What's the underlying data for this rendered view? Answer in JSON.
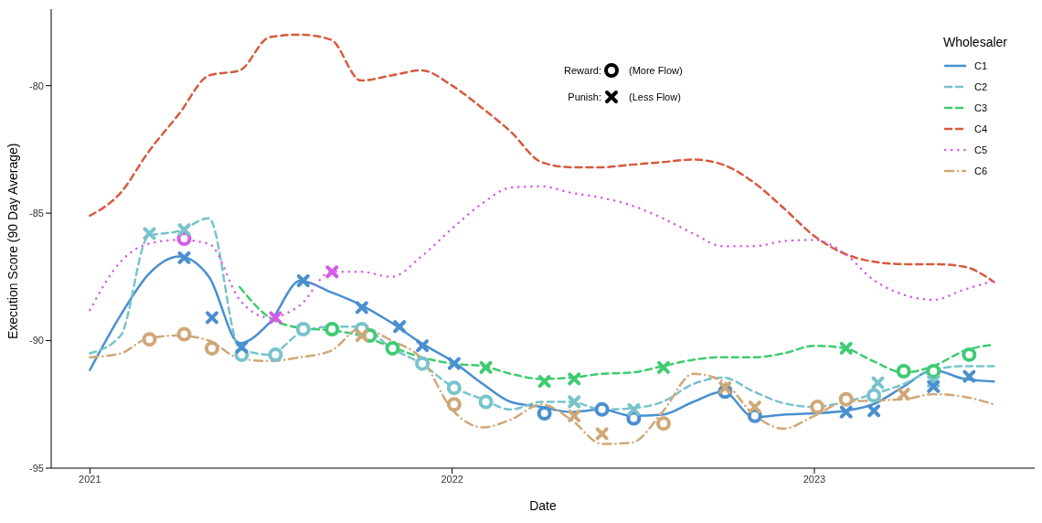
{
  "chart_data": {
    "type": "line",
    "xlabel": "Date",
    "ylabel": "Execution Score (90 Day Average)",
    "legend_title": "Wholesaler",
    "legend": "top right",
    "x": [
      "2021-01-01",
      "2021-02-01",
      "2021-03-01",
      "2021-04-01",
      "2021-05-01",
      "2021-06-01",
      "2021-07-01",
      "2021-08-01",
      "2021-09-01",
      "2021-10-01",
      "2021-11-01",
      "2021-12-01",
      "2022-01-01",
      "2022-02-01",
      "2022-03-01",
      "2022-04-01",
      "2022-05-01",
      "2022-06-01",
      "2022-07-01",
      "2022-08-01",
      "2022-09-01",
      "2022-10-01",
      "2022-11-01",
      "2022-12-01",
      "2023-01-01",
      "2023-02-01",
      "2023-03-01",
      "2023-04-01",
      "2023-05-01",
      "2023-06-01",
      "2023-07-01"
    ],
    "xlim": [
      "2020-11-23",
      "2023-08-11"
    ],
    "xticks": [
      "2021",
      "2022",
      "2023"
    ],
    "ylim": [
      -95,
      -77
    ],
    "yticks": [
      -95,
      -90,
      -85,
      -80
    ],
    "grid": false,
    "series": [
      {
        "name": "C1",
        "color": "#4a8fcf",
        "line_style": "solid",
        "values": [
          -91.15,
          -89.0,
          -87.4,
          -86.7,
          -87.5,
          -90.1,
          -89.3,
          -87.65,
          -88.1,
          -88.6,
          -89.3,
          -90.1,
          -90.8,
          -91.7,
          -92.4,
          -92.6,
          -92.8,
          -92.7,
          -92.95,
          -92.9,
          -92.4,
          -92.0,
          -93.0,
          -92.9,
          -92.85,
          -92.75,
          -92.5,
          -91.8,
          -91.15,
          -91.5,
          -91.6
        ]
      },
      {
        "name": "C2",
        "color": "#78c3cc",
        "line_style": "dashed",
        "values": [
          -90.5,
          -89.8,
          -85.9,
          -85.7,
          -85.2,
          -90.3,
          -90.55,
          -89.7,
          -89.45,
          -89.45,
          -90.3,
          -90.9,
          -91.8,
          -92.3,
          -92.7,
          -92.4,
          -92.4,
          -92.7,
          -92.65,
          -92.4,
          -91.7,
          -91.45,
          -92.0,
          -92.45,
          -92.6,
          -92.4,
          -92.1,
          -91.7,
          -91.15,
          -91.0,
          -91.0
        ]
      },
      {
        "name": "C3",
        "color": "#3fcb72",
        "line_style": "dashed",
        "values": [
          null,
          null,
          null,
          null,
          null,
          -87.9,
          -89.1,
          -89.5,
          -89.6,
          -89.8,
          -90.25,
          -90.65,
          -90.9,
          -91.0,
          -91.3,
          -91.5,
          -91.45,
          -91.3,
          -91.25,
          -91.0,
          -90.75,
          -90.65,
          -90.65,
          -90.5,
          -90.2,
          -90.3,
          -90.8,
          -91.25,
          -91.0,
          -90.4,
          -90.15
        ]
      },
      {
        "name": "C4",
        "color": "#d55b3e",
        "line_style": "dashed",
        "values": [
          -85.1,
          -84.2,
          -82.6,
          -81.1,
          -79.6,
          -79.4,
          -78.1,
          -78.0,
          -78.2,
          -79.8,
          -79.6,
          -79.4,
          -80.0,
          -80.9,
          -81.8,
          -83.0,
          -83.2,
          -83.2,
          -83.1,
          -83.0,
          -82.9,
          -83.1,
          -83.8,
          -84.8,
          -85.9,
          -86.6,
          -86.9,
          -87.0,
          -87.0,
          -87.1,
          -87.7
        ]
      },
      {
        "name": "C5",
        "color": "#d65ae8",
        "line_style": "dotted",
        "values": [
          -88.8,
          -86.9,
          -86.2,
          -86.05,
          -86.2,
          -88.4,
          -89.1,
          -88.6,
          -87.3,
          -87.3,
          -87.5,
          -86.7,
          -85.6,
          -84.6,
          -84.0,
          -83.95,
          -84.2,
          -84.4,
          -84.7,
          -85.2,
          -85.8,
          -86.3,
          -86.3,
          -86.1,
          -86.05,
          -86.6,
          -87.6,
          -88.2,
          -88.4,
          -88.0,
          -87.65
        ]
      },
      {
        "name": "C6",
        "color": "#cfa877",
        "line_style": "dashdot",
        "values": [
          -90.65,
          -90.5,
          -89.9,
          -89.8,
          -90.0,
          -90.7,
          -90.8,
          -90.65,
          -90.4,
          -89.5,
          -90.0,
          -90.7,
          -92.7,
          -93.4,
          -93.1,
          -92.5,
          -93.1,
          -94.05,
          -94.0,
          -92.8,
          -91.3,
          -91.6,
          -92.9,
          -93.45,
          -92.95,
          -92.4,
          -92.35,
          -92.3,
          -92.1,
          -92.2,
          -92.5
        ]
      },
      {
        "type": "scatter",
        "marker": "circle",
        "color": "#000000",
        "x": [
          "2021-04-06",
          "2021-03-02",
          "2021-04-06",
          "2021-05-04",
          "2022-01-03",
          "2022-08-02",
          "2023-01-04",
          "2023-02-02",
          "2021-06-03",
          "2021-07-07",
          "2021-08-04",
          "2021-10-02",
          "2021-12-02",
          "2022-01-03",
          "2022-02-04",
          "2023-03-02",
          "2021-09-02",
          "2021-10-10",
          "2021-11-02",
          "2023-04-01",
          "2023-05-01",
          "2023-06-06",
          "2022-04-04",
          "2022-06-01",
          "2022-07-03",
          "2022-10-03",
          "2022-11-02"
        ],
        "values": [
          -86.0,
          -89.95,
          -89.75,
          -90.3,
          -92.5,
          -93.25,
          -92.6,
          -92.3,
          -90.55,
          -90.55,
          -89.55,
          -89.55,
          -90.9,
          -91.85,
          -92.4,
          -92.15,
          -89.55,
          -89.8,
          -90.3,
          -91.2,
          -91.2,
          -90.55,
          -92.85,
          -92.7,
          -93.05,
          -92.0,
          -92.95
        ],
        "colors": [
          "#d65ae8",
          "#cfa877",
          "#cfa877",
          "#cfa877",
          "#cfa877",
          "#cfa877",
          "#cfa877",
          "#cfa877",
          "#78c3cc",
          "#78c3cc",
          "#78c3cc",
          "#78c3cc",
          "#78c3cc",
          "#78c3cc",
          "#78c3cc",
          "#78c3cc",
          "#3fcb72",
          "#3fcb72",
          "#3fcb72",
          "#3fcb72",
          "#3fcb72",
          "#3fcb72",
          "#4a8fcf",
          "#4a8fcf",
          "#4a8fcf",
          "#4a8fcf",
          "#4a8fcf"
        ]
      },
      {
        "type": "scatter",
        "marker": "cross",
        "color": "#000000",
        "x": [
          "2021-03-02",
          "2021-04-06",
          "2022-05-04",
          "2022-07-03",
          "2023-03-06",
          "2023-05-01",
          "2021-04-06",
          "2021-05-04",
          "2021-06-03",
          "2021-08-04",
          "2021-10-02",
          "2021-11-09",
          "2021-12-02",
          "2022-01-03",
          "2023-02-02",
          "2023-03-02",
          "2023-05-01",
          "2023-06-06",
          "2022-02-04",
          "2022-04-04",
          "2022-05-04",
          "2022-08-02",
          "2023-02-02",
          "2021-07-07",
          "2021-09-02",
          "2021-10-02",
          "2022-05-04",
          "2022-06-01",
          "2022-10-03",
          "2022-11-02",
          "2023-04-01"
        ],
        "values": [
          -85.8,
          -85.65,
          -92.4,
          -92.7,
          -91.65,
          -91.6,
          -86.75,
          -89.1,
          -90.25,
          -87.65,
          -88.7,
          -89.45,
          -90.2,
          -90.9,
          -92.8,
          -92.75,
          -91.8,
          -91.4,
          -91.05,
          -91.6,
          -91.5,
          -91.05,
          -90.3,
          -89.1,
          -87.3,
          -89.8,
          -92.95,
          -93.65,
          -91.85,
          -92.6,
          -92.1
        ],
        "colors": [
          "#78c3cc",
          "#78c3cc",
          "#78c3cc",
          "#78c3cc",
          "#78c3cc",
          "#78c3cc",
          "#4a8fcf",
          "#4a8fcf",
          "#4a8fcf",
          "#4a8fcf",
          "#4a8fcf",
          "#4a8fcf",
          "#4a8fcf",
          "#4a8fcf",
          "#4a8fcf",
          "#4a8fcf",
          "#4a8fcf",
          "#4a8fcf",
          "#3fcb72",
          "#3fcb72",
          "#3fcb72",
          "#3fcb72",
          "#3fcb72",
          "#d65ae8",
          "#d65ae8",
          "#cfa877",
          "#cfa877",
          "#cfa877",
          "#cfa877",
          "#cfa877",
          "#cfa877"
        ]
      }
    ],
    "annotations": [
      "Reward:",
      "(More Flow)",
      "Punish:",
      "(Less Flow)"
    ]
  }
}
